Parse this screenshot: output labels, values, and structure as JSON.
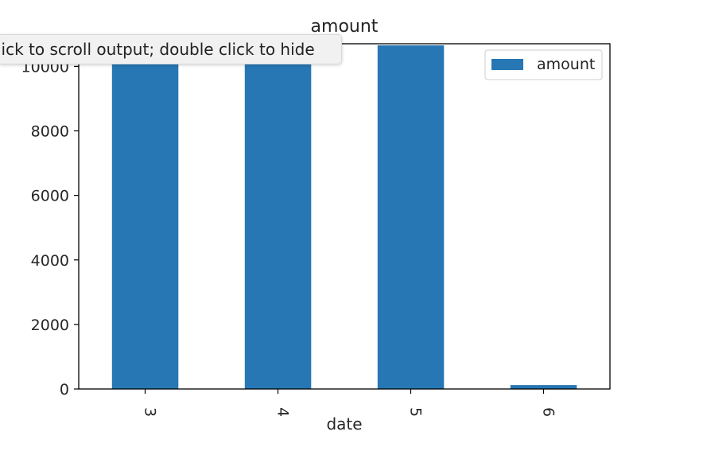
{
  "tooltip": {
    "text": "Click to scroll output; double click to hide"
  },
  "chart_data": {
    "type": "bar",
    "title": "amount",
    "xlabel": "date",
    "ylabel": "",
    "categories": [
      "3",
      "4",
      "5",
      "6"
    ],
    "series": [
      {
        "name": "amount",
        "values": [
          10600,
          10600,
          10650,
          120
        ],
        "color": "#2677b4"
      }
    ],
    "ylim": [
      0,
      10700
    ],
    "yticks": [
      0,
      2000,
      4000,
      6000,
      8000,
      10000
    ],
    "x_tick_rotation": 90,
    "grid": false,
    "legend": "top-right"
  }
}
